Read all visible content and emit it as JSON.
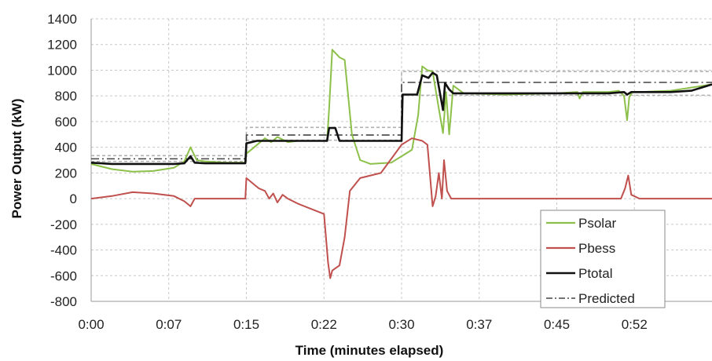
{
  "chart_data": {
    "type": "line",
    "title": "",
    "xlabel": "Time (minutes elapsed)",
    "ylabel": "Power Output (kW)",
    "xlim": [
      0,
      60
    ],
    "ylim": [
      -800,
      1400
    ],
    "x_ticks": [
      0,
      7.5,
      15,
      22.5,
      30,
      37.5,
      45,
      52.5
    ],
    "x_tick_labels": [
      "0:00",
      "0:07",
      "0:15",
      "0:22",
      "0:30",
      "0:37",
      "0:45",
      "0:52"
    ],
    "y_ticks": [
      -800,
      -600,
      -400,
      -200,
      0,
      200,
      400,
      600,
      800,
      1000,
      1200,
      1400
    ],
    "y_tick_labels": [
      "-800",
      "-600",
      "-400",
      "-200",
      "0",
      "200",
      "400",
      "600",
      "800",
      "1000",
      "1200",
      "1400"
    ],
    "grid": "dashed, both axes",
    "legend_position": "bottom-right",
    "series": [
      {
        "name": "Psolar",
        "color": "#8cc04a",
        "dash": "",
        "x": [
          0,
          2,
          4,
          6,
          8,
          9,
          9.6,
          10.2,
          11,
          13,
          14.9,
          15,
          15.6,
          16.2,
          16.8,
          17.4,
          18,
          19,
          20,
          21,
          22.8,
          23,
          23.3,
          24,
          24.5,
          25.2,
          26,
          27,
          29,
          30,
          31,
          31.6,
          32,
          32.5,
          33,
          33.6,
          34,
          34.3,
          34.6,
          35,
          36,
          40,
          45,
          47,
          47.2,
          47.5,
          50,
          51,
          51.5,
          51.8,
          52,
          52.3,
          53,
          56,
          60
        ],
        "y": [
          270,
          230,
          210,
          215,
          240,
          290,
          400,
          300,
          290,
          280,
          280,
          350,
          390,
          430,
          470,
          440,
          480,
          440,
          450,
          450,
          450,
          700,
          1160,
          1100,
          1080,
          500,
          300,
          270,
          280,
          330,
          380,
          650,
          1030,
          1000,
          990,
          700,
          510,
          830,
          500,
          880,
          820,
          810,
          820,
          830,
          780,
          830,
          830,
          840,
          800,
          610,
          790,
          830,
          830,
          840,
          890
        ]
      },
      {
        "name": "Pbess",
        "color": "#c0504d",
        "dash": "",
        "x": [
          0,
          2,
          4,
          6,
          8,
          9,
          9.6,
          10,
          11,
          14.9,
          15,
          15.6,
          16.2,
          16.8,
          17.2,
          17.6,
          18,
          18.5,
          19,
          20,
          22.5,
          22.9,
          23.1,
          23.3,
          24,
          24.5,
          25,
          26,
          28,
          30,
          31,
          32,
          32.5,
          33,
          33.3,
          33.6,
          33.9,
          34.1,
          34.4,
          34.8,
          35,
          36,
          50,
          51.2,
          51.6,
          51.9,
          52.2,
          53,
          60
        ],
        "y": [
          0,
          20,
          50,
          40,
          20,
          -20,
          -60,
          0,
          0,
          0,
          160,
          120,
          80,
          60,
          0,
          40,
          -30,
          30,
          0,
          -40,
          -120,
          -500,
          -620,
          -560,
          -520,
          -300,
          60,
          160,
          200,
          420,
          470,
          450,
          420,
          -60,
          20,
          200,
          0,
          300,
          60,
          0,
          0,
          0,
          0,
          0,
          80,
          180,
          30,
          0,
          0
        ]
      },
      {
        "name": "Ptotal",
        "color": "#111111",
        "dash": "",
        "x": [
          0,
          2,
          4,
          6,
          8,
          9,
          9.6,
          10,
          11,
          14.9,
          15,
          16,
          18,
          20,
          22,
          22.8,
          23,
          23.6,
          24,
          25.2,
          26,
          28,
          30,
          30.1,
          31,
          31.5,
          32,
          32.6,
          33,
          33.4,
          34,
          34.2,
          34.6,
          35,
          36,
          40,
          45,
          50,
          51.5,
          51.8,
          52.2,
          53,
          56,
          58,
          60
        ],
        "y": [
          280,
          270,
          270,
          270,
          270,
          275,
          330,
          280,
          275,
          275,
          430,
          450,
          450,
          450,
          450,
          450,
          550,
          550,
          450,
          450,
          450,
          450,
          450,
          810,
          810,
          810,
          960,
          940,
          980,
          960,
          690,
          900,
          850,
          820,
          820,
          820,
          820,
          820,
          830,
          810,
          830,
          830,
          830,
          840,
          890
        ]
      }
    ],
    "predicted": {
      "name": "Predicted",
      "color": "#444444",
      "dash": "dash-dot",
      "band_color": "#b0b0b0",
      "segments": [
        {
          "x0": 0,
          "x1": 15,
          "center": 310,
          "lower": 290,
          "upper": 335
        },
        {
          "x0": 15,
          "x1": 30,
          "center": 495,
          "lower": 455,
          "upper": 555
        },
        {
          "x0": 30,
          "x1": 60,
          "center": 905,
          "lower": 805,
          "upper": 990
        }
      ]
    }
  }
}
